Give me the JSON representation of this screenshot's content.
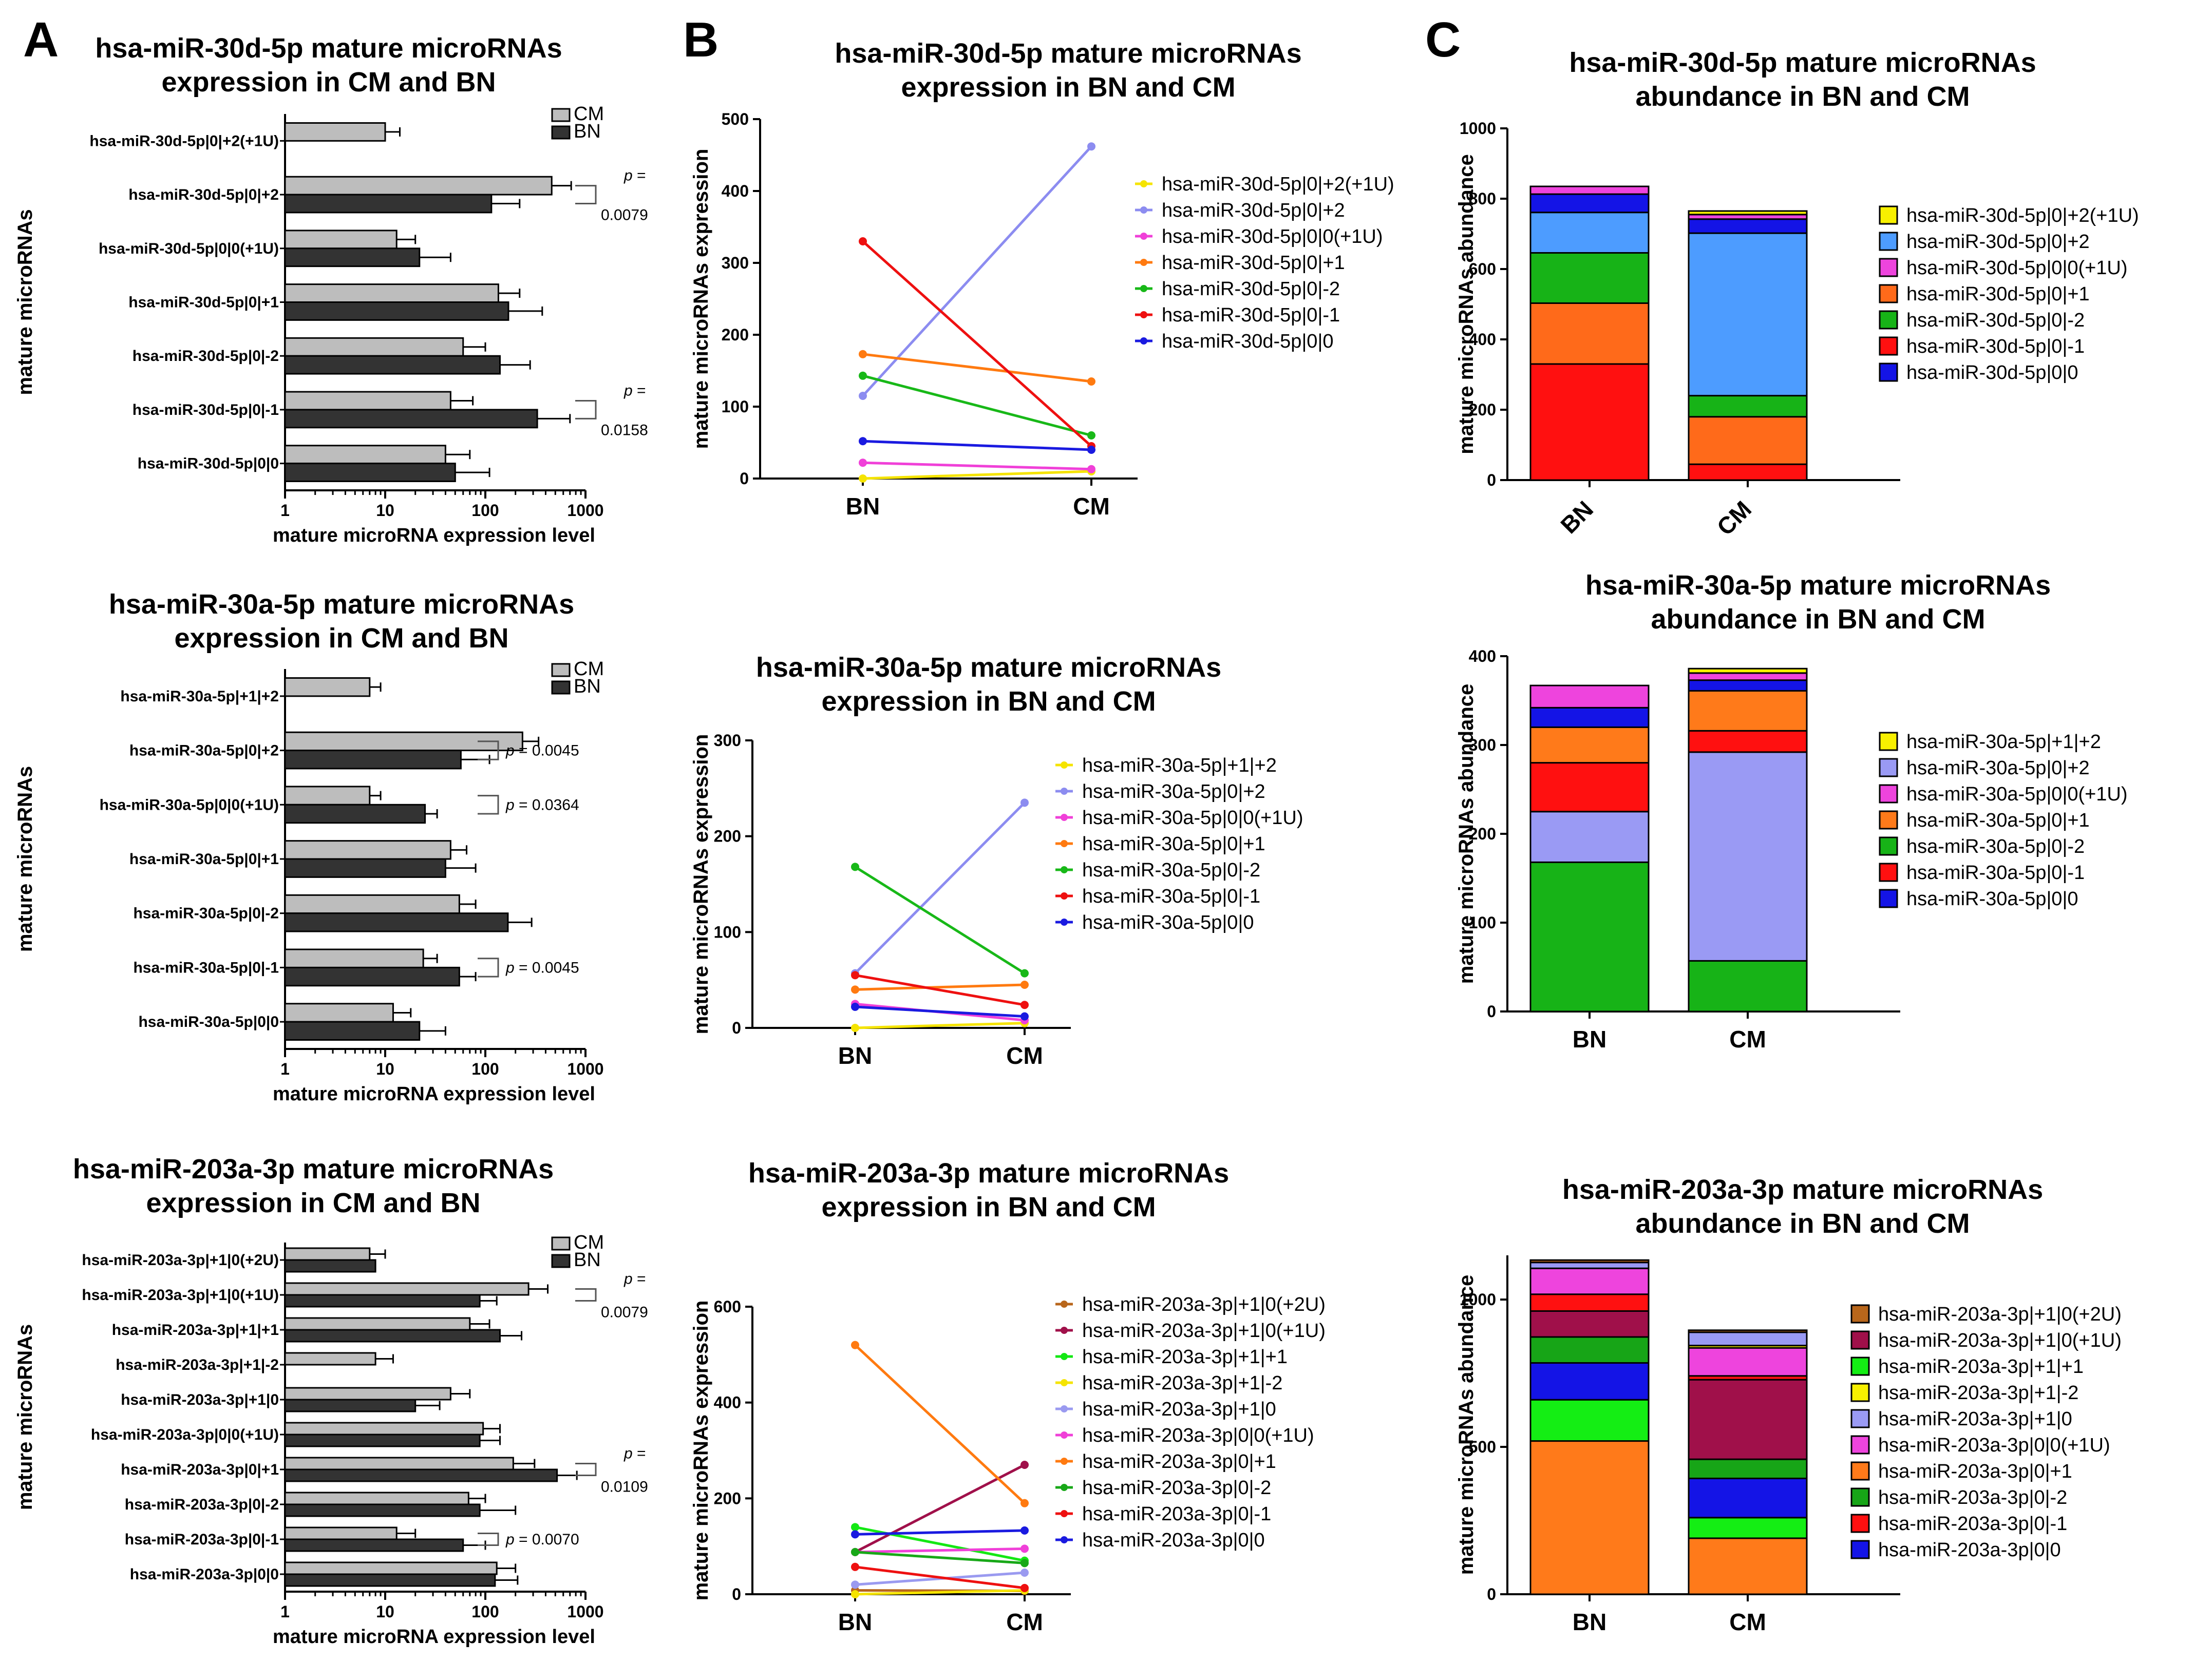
{
  "panel_labels": [
    "A",
    "B",
    "C"
  ],
  "chart_data": [
    {
      "id": "A1",
      "type": "bar",
      "orientation": "horizontal",
      "xscale": "log",
      "title": [
        "hsa-miR-30d-5p mature microRNAs",
        "expression in CM and BN"
      ],
      "xlabel": "mature microRNA expression level",
      "ylabel": "mature microRNAs",
      "xticks": [
        "1",
        "10",
        "100",
        "1000"
      ],
      "xlim": [
        1,
        1000
      ],
      "categories": [
        "hsa-miR-30d-5p|0|+2(+1U)",
        "hsa-miR-30d-5p|0|+2",
        "hsa-miR-30d-5p|0|0(+1U)",
        "hsa-miR-30d-5p|0|+1",
        "hsa-miR-30d-5p|0|-2",
        "hsa-miR-30d-5p|0|-1",
        "hsa-miR-30d-5p|0|0"
      ],
      "series": [
        {
          "name": "CM",
          "color": "#bdbdbd",
          "values": [
            10,
            460,
            13,
            135,
            60,
            45,
            40
          ],
          "errors": [
            14,
            720,
            20,
            220,
            100,
            75,
            70
          ]
        },
        {
          "name": "BN",
          "color": "#333333",
          "values": [
            null,
            115,
            22,
            170,
            140,
            330,
            50
          ],
          "errors": [
            null,
            220,
            45,
            370,
            280,
            700,
            110
          ]
        }
      ],
      "annotations": [
        {
          "pair": 1,
          "p_label": "p",
          "lines": [
            "=",
            "0.0079"
          ]
        },
        {
          "pair": 5,
          "p_label": "p",
          "lines": [
            "=",
            "0.0158"
          ]
        }
      ]
    },
    {
      "id": "A2",
      "type": "bar",
      "orientation": "horizontal",
      "xscale": "log",
      "title": [
        "hsa-miR-30a-5p mature microRNAs",
        "expression in CM and BN"
      ],
      "xlabel": "mature microRNA expression level",
      "ylabel": "mature microRNAs",
      "xticks": [
        "1",
        "10",
        "100",
        "1000"
      ],
      "xlim": [
        1,
        1000
      ],
      "categories": [
        "hsa-miR-30a-5p|+1|+2",
        "hsa-miR-30a-5p|0|+2",
        "hsa-miR-30a-5p|0|0(+1U)",
        "hsa-miR-30a-5p|0|+1",
        "hsa-miR-30a-5p|0|-2",
        "hsa-miR-30a-5p|0|-1",
        "hsa-miR-30a-5p|0|0"
      ],
      "series": [
        {
          "name": "CM",
          "color": "#bdbdbd",
          "values": [
            7,
            235,
            7,
            45,
            55,
            24,
            12
          ],
          "errors": [
            9,
            340,
            9,
            65,
            80,
            33,
            18
          ]
        },
        {
          "name": "BN",
          "color": "#333333",
          "values": [
            null,
            57,
            25,
            40,
            168,
            55,
            22
          ],
          "errors": [
            null,
            110,
            33,
            80,
            290,
            80,
            40
          ]
        }
      ],
      "annotations": [
        {
          "pair": 1,
          "p_label": "p",
          "lines": [
            "= 0.0045"
          ]
        },
        {
          "pair": 2,
          "p_label": "p",
          "lines": [
            "= 0.0364"
          ]
        },
        {
          "pair": 5,
          "p_label": "p",
          "lines": [
            "= 0.0045"
          ]
        }
      ]
    },
    {
      "id": "A3",
      "type": "bar",
      "orientation": "horizontal",
      "xscale": "log",
      "title": [
        "hsa-miR-203a-3p mature microRNAs",
        "expression in CM and BN"
      ],
      "xlabel": "mature microRNA expression level",
      "ylabel": "mature microRNAs",
      "xticks": [
        "1",
        "10",
        "100",
        "1000"
      ],
      "xlim": [
        1,
        1000
      ],
      "categories": [
        "hsa-miR-203a-3p|+1|0(+2U)",
        "hsa-miR-203a-3p|+1|0(+1U)",
        "hsa-miR-203a-3p|+1|+1",
        "hsa-miR-203a-3p|+1|-2",
        "hsa-miR-203a-3p|+1|0",
        "hsa-miR-203a-3p|0|0(+1U)",
        "hsa-miR-203a-3p|0|+1",
        "hsa-miR-203a-3p|0|-2",
        "hsa-miR-203a-3p|0|-1",
        "hsa-miR-203a-3p|0|0"
      ],
      "series": [
        {
          "name": "CM",
          "color": "#bdbdbd",
          "values": [
            7,
            270,
            70,
            8,
            45,
            95,
            190,
            68,
            13,
            130
          ],
          "errors": [
            10,
            420,
            110,
            12,
            70,
            140,
            310,
            100,
            20,
            200
          ]
        },
        {
          "name": "BN",
          "color": "#333333",
          "values": [
            8,
            88,
            140,
            null,
            20,
            88,
            520,
            88,
            60,
            125
          ],
          "errors": [
            8,
            130,
            230,
            null,
            35,
            140,
            820,
            200,
            100,
            210
          ]
        }
      ],
      "annotations": [
        {
          "pair": 1,
          "p_label": "p",
          "lines": [
            "=",
            "0.0079"
          ]
        },
        {
          "pair": 6,
          "p_label": "p",
          "lines": [
            "=",
            "0.0109"
          ]
        },
        {
          "pair": 8,
          "p_label": "p",
          "lines": [
            "= 0.0070"
          ]
        }
      ]
    },
    {
      "id": "B1",
      "type": "line",
      "title": [
        "hsa-miR-30d-5p mature microRNAs",
        "expression in BN and CM"
      ],
      "ylabel": "mature microRNAs expression",
      "categories": [
        "BN",
        "CM"
      ],
      "ylim": [
        0,
        500
      ],
      "yticks": [
        "0",
        "100",
        "200",
        "300",
        "400",
        "500"
      ],
      "series": [
        {
          "name": "hsa-miR-30d-5p|0|+2(+1U)",
          "color": "#f5e400",
          "values": [
            0,
            10
          ]
        },
        {
          "name": "hsa-miR-30d-5p|0|+2",
          "color": "#8c8cf0",
          "values": [
            115,
            462
          ]
        },
        {
          "name": "hsa-miR-30d-5p|0|0(+1U)",
          "color": "#f040d8",
          "values": [
            22,
            13
          ]
        },
        {
          "name": "hsa-miR-30d-5p|0|+1",
          "color": "#ff7a10",
          "values": [
            173,
            135
          ]
        },
        {
          "name": "hsa-miR-30d-5p|0|-2",
          "color": "#18b818",
          "values": [
            143,
            60
          ]
        },
        {
          "name": "hsa-miR-30d-5p|0|-1",
          "color": "#ee1010",
          "values": [
            330,
            45
          ]
        },
        {
          "name": "hsa-miR-30d-5p|0|0",
          "color": "#1a1ae0",
          "values": [
            52,
            40
          ]
        }
      ]
    },
    {
      "id": "B2",
      "type": "line",
      "title": [
        "hsa-miR-30a-5p mature microRNAs",
        "expression in BN and CM"
      ],
      "ylabel": "mature microRNAs expression",
      "categories": [
        "BN",
        "CM"
      ],
      "ylim": [
        0,
        300
      ],
      "yticks": [
        "0",
        "100",
        "200",
        "300"
      ],
      "series": [
        {
          "name": "hsa-miR-30a-5p|+1|+2",
          "color": "#f5e400",
          "values": [
            0,
            5
          ]
        },
        {
          "name": "hsa-miR-30a-5p|0|+2",
          "color": "#8c8cf0",
          "values": [
            57,
            235
          ]
        },
        {
          "name": "hsa-miR-30a-5p|0|0(+1U)",
          "color": "#f040d8",
          "values": [
            25,
            8
          ]
        },
        {
          "name": "hsa-miR-30a-5p|0|+1",
          "color": "#ff7a10",
          "values": [
            40,
            45
          ]
        },
        {
          "name": "hsa-miR-30a-5p|0|-2",
          "color": "#18b818",
          "values": [
            168,
            57
          ]
        },
        {
          "name": "hsa-miR-30a-5p|0|-1",
          "color": "#ee1010",
          "values": [
            55,
            24
          ]
        },
        {
          "name": "hsa-miR-30a-5p|0|0",
          "color": "#1a1ae0",
          "values": [
            22,
            12
          ]
        }
      ]
    },
    {
      "id": "B3",
      "type": "line",
      "title": [
        "hsa-miR-203a-3p mature microRNAs",
        "expression in BN and CM"
      ],
      "ylabel": "mature microRNAs expression",
      "categories": [
        "BN",
        "CM"
      ],
      "ylim": [
        0,
        600
      ],
      "yticks": [
        "0",
        "200",
        "400",
        "600"
      ],
      "series": [
        {
          "name": "hsa-miR-203a-3p|+1|0(+2U)",
          "color": "#b8661b",
          "values": [
            8,
            7
          ]
        },
        {
          "name": "hsa-miR-203a-3p|+1|0(+1U)",
          "color": "#a0104a",
          "values": [
            88,
            270
          ]
        },
        {
          "name": "hsa-miR-203a-3p|+1|+1",
          "color": "#14e814",
          "values": [
            140,
            70
          ]
        },
        {
          "name": "hsa-miR-203a-3p|+1|-2",
          "color": "#f5e400",
          "values": [
            0,
            8
          ]
        },
        {
          "name": "hsa-miR-203a-3p|+1|0",
          "color": "#9a9af0",
          "values": [
            20,
            45
          ]
        },
        {
          "name": "hsa-miR-203a-3p|0|0(+1U)",
          "color": "#f040d8",
          "values": [
            88,
            95
          ]
        },
        {
          "name": "hsa-miR-203a-3p|0|+1",
          "color": "#ff7a10",
          "values": [
            520,
            190
          ]
        },
        {
          "name": "hsa-miR-203a-3p|0|-2",
          "color": "#18a818",
          "values": [
            88,
            65
          ]
        },
        {
          "name": "hsa-miR-203a-3p|0|-1",
          "color": "#ee1010",
          "values": [
            57,
            13
          ]
        },
        {
          "name": "hsa-miR-203a-3p|0|0",
          "color": "#1a1ae0",
          "values": [
            125,
            133
          ]
        }
      ]
    },
    {
      "id": "C1",
      "type": "stacked-bar",
      "title": [
        "hsa-miR-30d-5p mature microRNAs",
        "abundance in BN and CM"
      ],
      "ylabel": "mature microRNAs abundance",
      "categories": [
        "BN",
        "CM"
      ],
      "ylim": [
        0,
        1000
      ],
      "yticks": [
        "0",
        "200",
        "400",
        "600",
        "800",
        "1000"
      ],
      "rotated_categories": true,
      "series": [
        {
          "name": "hsa-miR-30d-5p|0|0",
          "color": "#1414e6",
          "values": [
            52,
            40
          ]
        },
        {
          "name": "hsa-miR-30d-5p|0|-1",
          "color": "#ff1010",
          "values": [
            330,
            45
          ]
        },
        {
          "name": "hsa-miR-30d-5p|0|-2",
          "color": "#17b317",
          "values": [
            143,
            60
          ]
        },
        {
          "name": "hsa-miR-30d-5p|0|+1",
          "color": "#ff6a1a",
          "values": [
            173,
            135
          ]
        },
        {
          "name": "hsa-miR-30d-5p|0|0(+1U)",
          "color": "#ee44dd",
          "values": [
            22,
            13
          ]
        },
        {
          "name": "hsa-miR-30d-5p|0|+2",
          "color": "#4d9cff",
          "values": [
            115,
            462
          ]
        },
        {
          "name": "hsa-miR-30d-5p|0|+2(+1U)",
          "color": "#f8f000",
          "values": [
            0,
            10
          ]
        }
      ],
      "stack_order": [
        "hsa-miR-30d-5p|0|-1",
        "hsa-miR-30d-5p|0|+1",
        "hsa-miR-30d-5p|0|-2",
        "hsa-miR-30d-5p|0|+2",
        "hsa-miR-30d-5p|0|0",
        "hsa-miR-30d-5p|0|0(+1U)",
        "hsa-miR-30d-5p|0|+2(+1U)"
      ]
    },
    {
      "id": "C2",
      "type": "stacked-bar",
      "title": [
        "hsa-miR-30a-5p mature microRNAs",
        "abundance in BN and CM"
      ],
      "ylabel": "mature microRNAs abundance",
      "categories": [
        "BN",
        "CM"
      ],
      "ylim": [
        0,
        400
      ],
      "yticks": [
        "0",
        "100",
        "200",
        "300",
        "400"
      ],
      "rotated_categories": false,
      "series": [
        {
          "name": "hsa-miR-30a-5p|0|0",
          "color": "#1414e6",
          "values": [
            22,
            12
          ]
        },
        {
          "name": "hsa-miR-30a-5p|0|-1",
          "color": "#ff1010",
          "values": [
            55,
            24
          ]
        },
        {
          "name": "hsa-miR-30a-5p|0|-2",
          "color": "#17b317",
          "values": [
            168,
            57
          ]
        },
        {
          "name": "hsa-miR-30a-5p|0|+1",
          "color": "#ff7a1a",
          "values": [
            40,
            45
          ]
        },
        {
          "name": "hsa-miR-30a-5p|0|0(+1U)",
          "color": "#ee44dd",
          "values": [
            25,
            8
          ]
        },
        {
          "name": "hsa-miR-30a-5p|0|+2",
          "color": "#9a9af4",
          "values": [
            57,
            235
          ]
        },
        {
          "name": "hsa-miR-30a-5p|+1|+2",
          "color": "#f8f000",
          "values": [
            0,
            5
          ]
        }
      ],
      "stack_order": [
        "hsa-miR-30a-5p|0|-2",
        "hsa-miR-30a-5p|0|+2",
        "hsa-miR-30a-5p|0|-1",
        "hsa-miR-30a-5p|0|+1",
        "hsa-miR-30a-5p|0|0",
        "hsa-miR-30a-5p|0|0(+1U)",
        "hsa-miR-30a-5p|+1|+2"
      ]
    },
    {
      "id": "C3",
      "type": "stacked-bar",
      "title": [
        "hsa-miR-203a-3p mature microRNAs",
        "abundance in BN and CM"
      ],
      "ylabel": "mature microRNAs abundance",
      "categories": [
        "BN",
        "CM"
      ],
      "ylim": [
        0,
        1150
      ],
      "yticks": [
        "0",
        "500",
        "1000"
      ],
      "rotated_categories": false,
      "series": [
        {
          "name": "hsa-miR-203a-3p|0|0",
          "color": "#1414e6",
          "values": [
            125,
            133
          ]
        },
        {
          "name": "hsa-miR-203a-3p|0|-1",
          "color": "#ff1010",
          "values": [
            57,
            13
          ]
        },
        {
          "name": "hsa-miR-203a-3p|0|-2",
          "color": "#17a517",
          "values": [
            88,
            65
          ]
        },
        {
          "name": "hsa-miR-203a-3p|0|+1",
          "color": "#ff7a1a",
          "values": [
            520,
            190
          ]
        },
        {
          "name": "hsa-miR-203a-3p|0|0(+1U)",
          "color": "#ee44dd",
          "values": [
            88,
            95
          ]
        },
        {
          "name": "hsa-miR-203a-3p|+1|0",
          "color": "#9a9af4",
          "values": [
            20,
            45
          ]
        },
        {
          "name": "hsa-miR-203a-3p|+1|-2",
          "color": "#f8f000",
          "values": [
            0,
            8
          ]
        },
        {
          "name": "hsa-miR-203a-3p|+1|+1",
          "color": "#14ee14",
          "values": [
            140,
            70
          ]
        },
        {
          "name": "hsa-miR-203a-3p|+1|0(+1U)",
          "color": "#a0104a",
          "values": [
            88,
            270
          ]
        },
        {
          "name": "hsa-miR-203a-3p|+1|0(+2U)",
          "color": "#b8661b",
          "values": [
            8,
            7
          ]
        }
      ],
      "stack_order": [
        "hsa-miR-203a-3p|0|+1",
        "hsa-miR-203a-3p|+1|+1",
        "hsa-miR-203a-3p|0|0",
        "hsa-miR-203a-3p|0|-2",
        "hsa-miR-203a-3p|+1|0(+1U)",
        "hsa-miR-203a-3p|0|-1",
        "hsa-miR-203a-3p|0|0(+1U)",
        "hsa-miR-203a-3p|+1|-2",
        "hsa-miR-203a-3p|+1|0",
        "hsa-miR-203a-3p|+1|0(+2U)"
      ]
    }
  ]
}
